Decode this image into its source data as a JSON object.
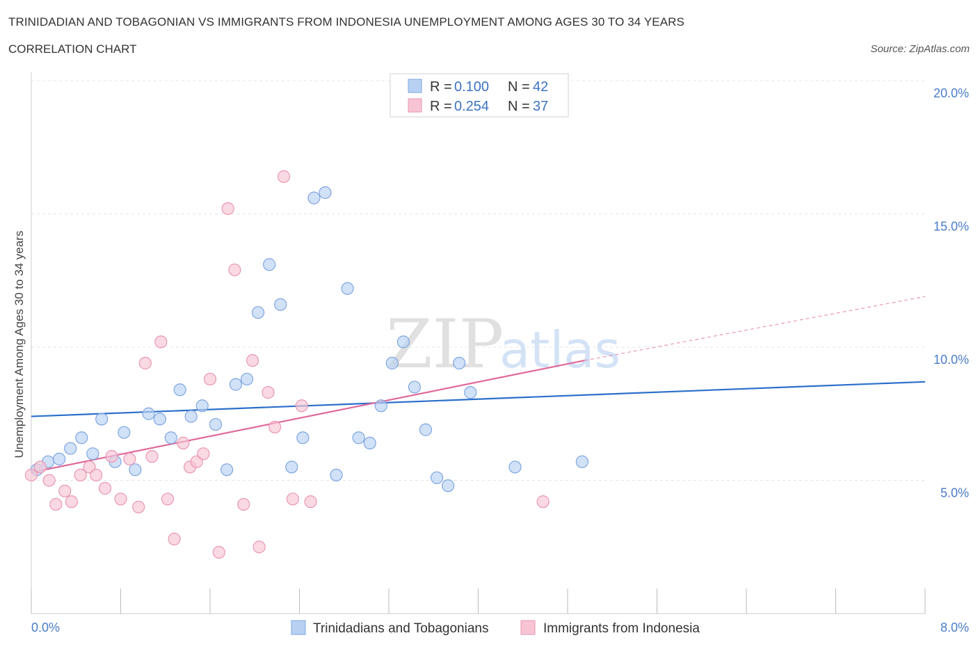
{
  "header": {
    "title": "TRINIDADIAN AND TOBAGONIAN VS IMMIGRANTS FROM INDONESIA UNEMPLOYMENT AMONG AGES 30 TO 34 YEARS",
    "subtitle": "CORRELATION CHART",
    "source": "Source: ZipAtlas.com"
  },
  "watermark": {
    "zip": "ZIP",
    "atlas": "atlas"
  },
  "legend": {
    "rows": [
      {
        "r_label": "R = ",
        "r_value": "0.100",
        "n_label": "N = ",
        "n_value": "42"
      },
      {
        "r_label": "R = ",
        "r_value": "0.254",
        "n_label": "N = ",
        "n_value": "37"
      }
    ]
  },
  "colors": {
    "blue_fill": "#b8d1f3",
    "blue_stroke": "#7ea6e0",
    "blue_line": "#2b6fcb",
    "pink_fill": "#f7c4d4",
    "pink_stroke": "#e896b2",
    "pink_line": "#e0699a"
  },
  "chart_data": {
    "type": "scatter",
    "title": "TRINIDADIAN AND TOBAGONIAN VS IMMIGRANTS FROM INDONESIA UNEMPLOYMENT AMONG AGES 30 TO 34 YEARS",
    "xlabel": "",
    "ylabel": "Unemployment Among Ages 30 to 34 years",
    "xlim": [
      0,
      8
    ],
    "ylim": [
      0,
      20
    ],
    "x_tick_labels": [
      "0.0%",
      "8.0%"
    ],
    "y_ticks": [
      5,
      10,
      15,
      20
    ],
    "y_tick_labels": [
      "5.0%",
      "10.0%",
      "15.0%",
      "20.0%"
    ],
    "grid": true,
    "legend_position": "top-center",
    "series": [
      {
        "name": "Trinidadians and Tobagonians",
        "color": "#b8d1f3",
        "trend": {
          "x": [
            0,
            8
          ],
          "y": [
            7.4,
            8.7
          ]
        },
        "points": [
          [
            0.05,
            5.4
          ],
          [
            0.15,
            5.7
          ],
          [
            0.25,
            5.8
          ],
          [
            0.35,
            6.2
          ],
          [
            0.45,
            6.6
          ],
          [
            0.55,
            6.0
          ],
          [
            0.63,
            7.3
          ],
          [
            0.75,
            5.7
          ],
          [
            0.83,
            6.8
          ],
          [
            0.93,
            5.4
          ],
          [
            1.05,
            7.5
          ],
          [
            1.15,
            7.3
          ],
          [
            1.25,
            6.6
          ],
          [
            1.33,
            8.4
          ],
          [
            1.43,
            7.4
          ],
          [
            1.53,
            7.8
          ],
          [
            1.65,
            7.1
          ],
          [
            1.75,
            5.4
          ],
          [
            1.83,
            8.6
          ],
          [
            1.93,
            8.8
          ],
          [
            2.03,
            11.3
          ],
          [
            2.13,
            13.1
          ],
          [
            2.23,
            11.6
          ],
          [
            2.33,
            5.5
          ],
          [
            2.43,
            6.6
          ],
          [
            2.53,
            15.6
          ],
          [
            2.63,
            15.8
          ],
          [
            2.73,
            5.2
          ],
          [
            2.83,
            12.2
          ],
          [
            2.93,
            6.6
          ],
          [
            3.03,
            6.4
          ],
          [
            3.13,
            7.8
          ],
          [
            3.23,
            9.4
          ],
          [
            3.33,
            10.2
          ],
          [
            3.43,
            8.5
          ],
          [
            3.53,
            6.9
          ],
          [
            3.63,
            5.1
          ],
          [
            3.73,
            4.8
          ],
          [
            3.83,
            9.4
          ],
          [
            3.93,
            8.3
          ],
          [
            4.33,
            5.5
          ],
          [
            4.93,
            5.7
          ]
        ]
      },
      {
        "name": "Immigrants from Indonesia",
        "color": "#f7c4d4",
        "trend": {
          "x": [
            0,
            4.95
          ],
          "y": [
            5.3,
            9.5
          ]
        },
        "trend_dashed": {
          "x": [
            4.95,
            8
          ],
          "y": [
            9.5,
            11.9
          ]
        },
        "points": [
          [
            0.0,
            5.2
          ],
          [
            0.08,
            5.5
          ],
          [
            0.16,
            5.0
          ],
          [
            0.22,
            4.1
          ],
          [
            0.3,
            4.6
          ],
          [
            0.36,
            4.2
          ],
          [
            0.44,
            5.2
          ],
          [
            0.52,
            5.5
          ],
          [
            0.58,
            5.2
          ],
          [
            0.66,
            4.7
          ],
          [
            0.72,
            5.9
          ],
          [
            0.8,
            4.3
          ],
          [
            0.88,
            5.8
          ],
          [
            0.96,
            4.0
          ],
          [
            1.02,
            9.4
          ],
          [
            1.08,
            5.9
          ],
          [
            1.16,
            10.2
          ],
          [
            1.22,
            4.3
          ],
          [
            1.28,
            2.8
          ],
          [
            1.36,
            6.4
          ],
          [
            1.42,
            5.5
          ],
          [
            1.48,
            5.7
          ],
          [
            1.54,
            6.0
          ],
          [
            1.6,
            8.8
          ],
          [
            1.68,
            2.3
          ],
          [
            1.76,
            15.2
          ],
          [
            1.82,
            12.9
          ],
          [
            1.9,
            4.1
          ],
          [
            1.98,
            9.5
          ],
          [
            2.04,
            2.5
          ],
          [
            2.12,
            8.3
          ],
          [
            2.18,
            7.0
          ],
          [
            2.26,
            16.4
          ],
          [
            2.34,
            4.3
          ],
          [
            2.42,
            7.8
          ],
          [
            2.5,
            4.2
          ],
          [
            4.58,
            4.2
          ]
        ]
      }
    ]
  }
}
